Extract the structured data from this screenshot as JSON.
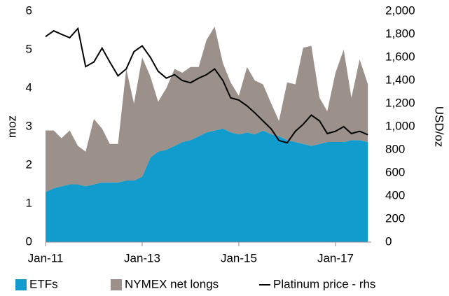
{
  "chart_data": {
    "type": "stacked-area-line",
    "ylabel": "moz",
    "y2label": "USD/oz",
    "x": [
      2011.0,
      2011.17,
      2011.33,
      2011.5,
      2011.67,
      2011.83,
      2012.0,
      2012.17,
      2012.33,
      2012.5,
      2012.67,
      2012.83,
      2013.0,
      2013.17,
      2013.33,
      2013.5,
      2013.67,
      2013.83,
      2014.0,
      2014.17,
      2014.33,
      2014.5,
      2014.67,
      2014.83,
      2015.0,
      2015.17,
      2015.33,
      2015.5,
      2015.67,
      2015.83,
      2016.0,
      2016.17,
      2016.33,
      2016.5,
      2016.67,
      2016.83,
      2017.0,
      2017.17,
      2017.33,
      2017.5,
      2017.67
    ],
    "xlim": [
      2011,
      2017.74
    ],
    "xticks": [
      {
        "value": 2011,
        "label": "Jan-11"
      },
      {
        "value": 2013,
        "label": "Jan-13"
      },
      {
        "value": 2015,
        "label": "Jan-15"
      },
      {
        "value": 2017,
        "label": "Jan-17"
      }
    ],
    "ylim": [
      0,
      6
    ],
    "yticks": [
      0,
      1,
      2,
      3,
      4,
      5,
      6
    ],
    "y2lim": [
      0,
      2000
    ],
    "y2ticks": [
      0,
      200,
      400,
      600,
      800,
      {
        "value": 1000,
        "label": "1,000"
      },
      {
        "value": 1200,
        "label": "1,200"
      },
      {
        "value": 1400,
        "label": "1,400"
      },
      {
        "value": 1600,
        "label": "1,600"
      },
      {
        "value": 1800,
        "label": "1,800"
      },
      {
        "value": 2000,
        "label": "2,000"
      }
    ],
    "series": [
      {
        "name": "ETFs",
        "color": "#119ccd",
        "kind": "area",
        "values": [
          1.3,
          1.4,
          1.45,
          1.5,
          1.5,
          1.45,
          1.5,
          1.55,
          1.55,
          1.55,
          1.6,
          1.6,
          1.7,
          2.2,
          2.35,
          2.4,
          2.5,
          2.6,
          2.65,
          2.75,
          2.85,
          2.9,
          2.95,
          2.85,
          2.8,
          2.85,
          2.8,
          2.9,
          2.8,
          2.75,
          2.65,
          2.6,
          2.55,
          2.5,
          2.55,
          2.6,
          2.6,
          2.6,
          2.65,
          2.65,
          2.6
        ]
      },
      {
        "name": "NYMEX net longs",
        "color": "#9b918a",
        "kind": "area",
        "values": [
          1.6,
          1.5,
          1.25,
          1.4,
          1.0,
          0.9,
          1.7,
          1.4,
          1.0,
          1.0,
          2.9,
          2.0,
          3.1,
          2.1,
          1.3,
          1.6,
          2.0,
          1.8,
          1.9,
          1.8,
          2.4,
          2.7,
          1.7,
          1.3,
          1.0,
          1.7,
          1.4,
          1.2,
          0.8,
          0.4,
          1.5,
          1.5,
          2.5,
          2.6,
          1.2,
          0.8,
          1.8,
          2.4,
          1.1,
          2.1,
          1.5
        ]
      },
      {
        "name": "Platinum price - rhs",
        "color": "#000000",
        "kind": "line",
        "axis": "y2",
        "values": [
          1780,
          1830,
          1800,
          1770,
          1850,
          1520,
          1560,
          1680,
          1560,
          1440,
          1500,
          1650,
          1700,
          1600,
          1480,
          1420,
          1450,
          1400,
          1380,
          1420,
          1450,
          1500,
          1400,
          1250,
          1230,
          1180,
          1120,
          1050,
          980,
          880,
          860,
          960,
          1020,
          1100,
          1050,
          940,
          960,
          1000,
          940,
          960,
          930
        ]
      }
    ]
  }
}
